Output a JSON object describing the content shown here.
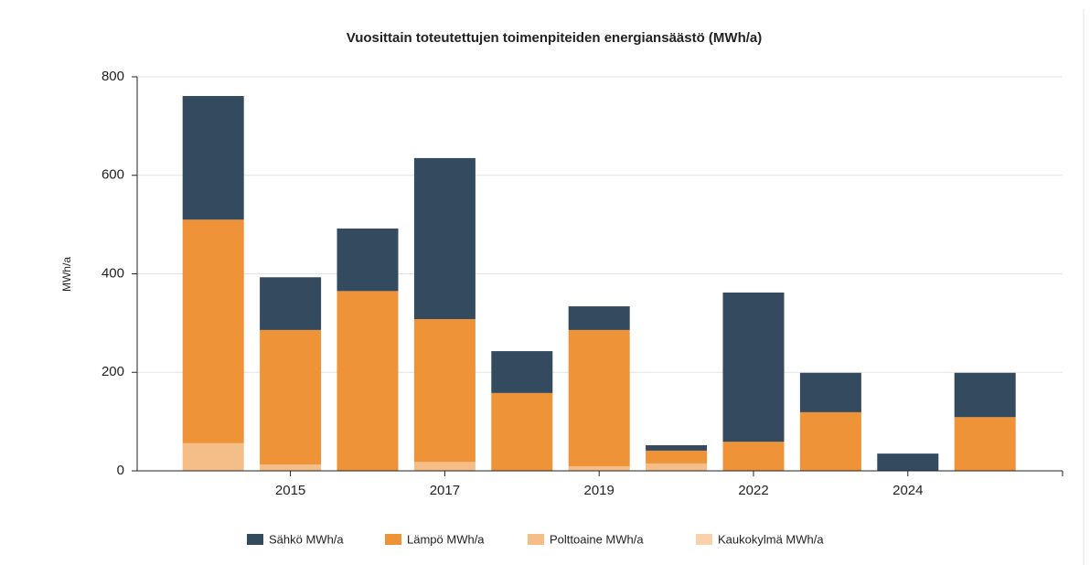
{
  "chart_data": {
    "type": "stacked_bar",
    "title": "Vuosittain  toteutettujen  toimenpiteiden  energiansäästö  (MWh/a)",
    "y_label": "MWh/a",
    "categories": [
      null,
      "2015",
      null,
      "2017",
      null,
      "2019",
      null,
      "2022",
      null,
      "2024",
      null
    ],
    "series": [
      {
        "name": "Kaukokylmä MWh/a",
        "color": "#f9d2ab",
        "values": [
          0,
          0,
          0,
          0,
          0,
          0,
          0,
          0,
          0,
          0,
          0
        ]
      },
      {
        "name": "Polttoaine MWh/a",
        "color": "#f5bd87",
        "values": [
          56,
          13,
          0,
          18,
          0,
          9,
          15,
          0,
          0,
          0,
          0
        ]
      },
      {
        "name": "Lämpö MWh/a",
        "color": "#ee9338",
        "values": [
          454,
          273,
          365,
          290,
          158,
          277,
          26,
          59,
          119,
          0,
          109
        ]
      },
      {
        "name": "Sähkö MWh/a",
        "color": "#344a5e",
        "values": [
          251,
          107,
          127,
          327,
          85,
          48,
          11,
          303,
          80,
          35,
          90
        ]
      }
    ],
    "legend_order": [
      3,
      2,
      1,
      0
    ],
    "ylim": [
      0,
      800
    ],
    "yticks": [
      0,
      200,
      400,
      600,
      800
    ],
    "grid": true,
    "legend": "bottom"
  }
}
